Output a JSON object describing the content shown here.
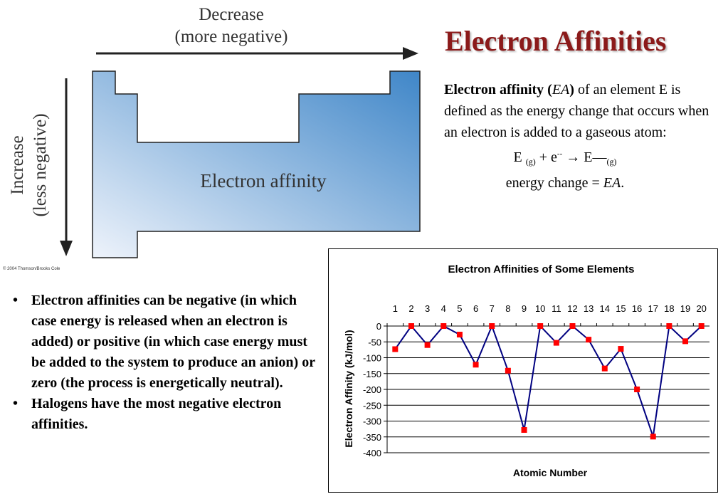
{
  "slide": {
    "title": "Electron Affinities",
    "figure": {
      "top_label_line1": "Decrease",
      "top_label_line2": "(more negative)",
      "side_label_line1": "Increase",
      "side_label_line2": "(less negative)",
      "center_label": "Electron affinity",
      "copyright": "© 2004 Thomson/Brooks Cole",
      "fill_color_light": "#eef3fb",
      "fill_color_dark": "#3f86c8"
    },
    "definition": {
      "term": "Electron affinity (",
      "term_symbol": "EA",
      "term_close": ")",
      "text": " of an element E is defined as the energy change that occurs when an electron is added to a gaseous atom:",
      "eq_E": "E",
      "eq_g1": "(g)",
      "eq_plus": " + e",
      "eq_sup": "--",
      "eq_arrow": " → ",
      "eq_E2": "E—",
      "eq_g2": "(g)",
      "energy_prefix": "energy change = ",
      "energy_symbol": "EA",
      "energy_suffix": "."
    },
    "bullets": [
      "Electron affinities can be negative (in which case energy is released when an electron is added) or positive (in which case energy must be added to the system to produce an anion) or zero (the process is energetically neutral).",
      "Halogens have the most negative electron affinities."
    ],
    "bullet_symbol": "•"
  },
  "chart_data": {
    "type": "line",
    "title": "Electron Affinities of Some Elements",
    "xlabel": "Atomic Number",
    "ylabel": "Electron Affinity (kJ/mol)",
    "x": [
      1,
      2,
      3,
      4,
      5,
      6,
      7,
      8,
      9,
      10,
      11,
      12,
      13,
      14,
      15,
      16,
      17,
      18,
      19,
      20
    ],
    "series": [
      {
        "values": [
          -73,
          0,
          -60,
          0,
          -27,
          -122,
          0,
          -141,
          -328,
          0,
          -53,
          0,
          -43,
          -134,
          -72,
          -200,
          -349,
          0,
          -48,
          0
        ],
        "line_color": "#000080",
        "marker_color": "#ff0000"
      }
    ],
    "yticks": [
      0,
      -50,
      -100,
      -150,
      -200,
      -250,
      -300,
      -350,
      -400
    ],
    "ylim": [
      -400,
      0
    ],
    "x_tick_position": "top",
    "grid": true
  }
}
